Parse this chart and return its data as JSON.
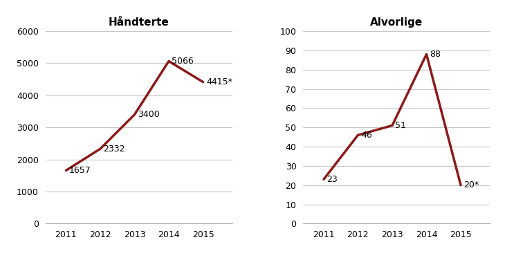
{
  "left_title": "Håndterte",
  "right_title": "Alvorlige",
  "years": [
    2011,
    2012,
    2013,
    2014,
    2015
  ],
  "left_values": [
    1657,
    2332,
    3400,
    5066,
    4415
  ],
  "right_values": [
    23,
    46,
    51,
    88,
    20
  ],
  "left_labels": [
    "1657",
    "2332",
    "3400",
    "5066",
    "4415*"
  ],
  "right_labels": [
    "23",
    "46",
    "51",
    "88",
    "20*"
  ],
  "left_ylim": [
    0,
    6000
  ],
  "left_yticks": [
    0,
    1000,
    2000,
    3000,
    4000,
    5000,
    6000
  ],
  "right_ylim": [
    0,
    100
  ],
  "right_yticks": [
    0,
    10,
    20,
    30,
    40,
    50,
    60,
    70,
    80,
    90,
    100
  ],
  "line_color": "#8B1A1A",
  "line_width": 2.5,
  "title_fontsize": 11,
  "tick_fontsize": 9,
  "annotation_fontsize": 9,
  "bg_color": "#ffffff",
  "grid_color": "#c8c8c8",
  "left_ann_offsets": [
    [
      2011,
      1657,
      "1657",
      0.09,
      0
    ],
    [
      2012,
      2332,
      "2332",
      0.09,
      0
    ],
    [
      2013,
      3400,
      "3400",
      0.09,
      0
    ],
    [
      2014,
      5066,
      "5066",
      0.09,
      0
    ],
    [
      2015,
      4415,
      "4415*",
      0.09,
      0
    ]
  ],
  "right_ann_offsets": [
    [
      2011,
      23,
      "23",
      0.09,
      0
    ],
    [
      2012,
      46,
      "46",
      0.09,
      0
    ],
    [
      2013,
      51,
      "51",
      0.09,
      0
    ],
    [
      2014,
      88,
      "88",
      0.09,
      0
    ],
    [
      2015,
      20,
      "20*",
      0.09,
      0
    ]
  ]
}
